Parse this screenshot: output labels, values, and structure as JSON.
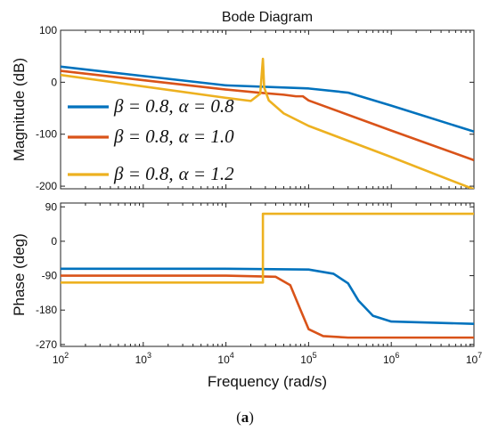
{
  "chart_data": {
    "type": "line",
    "title": "Bode Diagram",
    "xlabel": "Frequency  (rad/s)",
    "x_scale": "log",
    "xlim": [
      100,
      10000000
    ],
    "x_ticks": [
      {
        "value": 100,
        "base": "10",
        "exp": "2"
      },
      {
        "value": 1000,
        "base": "10",
        "exp": "3"
      },
      {
        "value": 10000,
        "base": "10",
        "exp": "4"
      },
      {
        "value": 100000,
        "base": "10",
        "exp": "5"
      },
      {
        "value": 1000000,
        "base": "10",
        "exp": "6"
      },
      {
        "value": 10000000,
        "base": "10",
        "exp": "7"
      }
    ],
    "caption": {
      "open": "(",
      "letter": "a",
      "close": ")"
    },
    "colors": {
      "blue": "#0072BD",
      "red": "#D95319",
      "yellow": "#EDB120"
    },
    "magnitude": {
      "ylabel": "Magnitude (dB)",
      "ylim": [
        -205,
        100
      ],
      "y_ticks": [
        {
          "value": 100,
          "label": "100"
        },
        {
          "value": 0,
          "label": "0"
        },
        {
          "value": -100,
          "label": "-100"
        },
        {
          "value": -200,
          "label": "-200"
        }
      ],
      "series": [
        {
          "label_beta": "β = 0.8,",
          "label_alpha": "α = 0.8",
          "color": "#0072BD",
          "points": [
            [
              100,
              30
            ],
            [
              1000,
              12
            ],
            [
              10000,
              -6
            ],
            [
              100000,
              -12
            ],
            [
              300000,
              -20
            ],
            [
              1000000,
              -45
            ],
            [
              10000000,
              -95
            ]
          ]
        },
        {
          "label_beta": "β = 0.8,",
          "label_alpha": "α = 1.0",
          "color": "#D95319",
          "points": [
            [
              100,
              22
            ],
            [
              1000,
              4
            ],
            [
              10000,
              -14
            ],
            [
              25000,
              -20
            ],
            [
              50000,
              -24
            ],
            [
              70000,
              -27
            ],
            [
              85000,
              -27
            ],
            [
              100000,
              -35
            ],
            [
              1000000,
              -93
            ],
            [
              10000000,
              -150
            ]
          ]
        },
        {
          "label_beta": "β = 0.8,",
          "label_alpha": "α = 1.2",
          "color": "#EDB120",
          "points": [
            [
              100,
              14
            ],
            [
              1000,
              -8
            ],
            [
              10000,
              -30
            ],
            [
              20000,
              -36
            ],
            [
              26000,
              -22
            ],
            [
              28000,
              45
            ],
            [
              29000,
              -10
            ],
            [
              33000,
              -35
            ],
            [
              50000,
              -60
            ],
            [
              100000,
              -84
            ],
            [
              1000000,
              -144
            ],
            [
              10000000,
              -206
            ]
          ]
        }
      ]
    },
    "phase": {
      "ylabel": "Phase (deg)",
      "ylim": [
        -275,
        100
      ],
      "y_ticks": [
        {
          "value": 90,
          "label": "90"
        },
        {
          "value": 0,
          "label": "0"
        },
        {
          "value": -90,
          "label": "-90"
        },
        {
          "value": -180,
          "label": "-180"
        },
        {
          "value": -270,
          "label": "-270"
        }
      ],
      "series": [
        {
          "color": "#0072BD",
          "points": [
            [
              100,
              -72
            ],
            [
              10000,
              -72
            ],
            [
              100000,
              -74
            ],
            [
              200000,
              -85
            ],
            [
              300000,
              -110
            ],
            [
              400000,
              -155
            ],
            [
              600000,
              -195
            ],
            [
              1000000,
              -210
            ],
            [
              10000000,
              -216
            ]
          ]
        },
        {
          "color": "#D95319",
          "points": [
            [
              100,
              -90
            ],
            [
              10000,
              -90
            ],
            [
              40000,
              -93
            ],
            [
              60000,
              -115
            ],
            [
              80000,
              -180
            ],
            [
              100000,
              -230
            ],
            [
              150000,
              -248
            ],
            [
              300000,
              -252
            ],
            [
              10000000,
              -252
            ]
          ]
        },
        {
          "color": "#EDB120",
          "points": [
            [
              100,
              -108
            ],
            [
              28000,
              -108
            ],
            [
              28000,
              72
            ],
            [
              10000000,
              72
            ]
          ]
        }
      ]
    }
  }
}
